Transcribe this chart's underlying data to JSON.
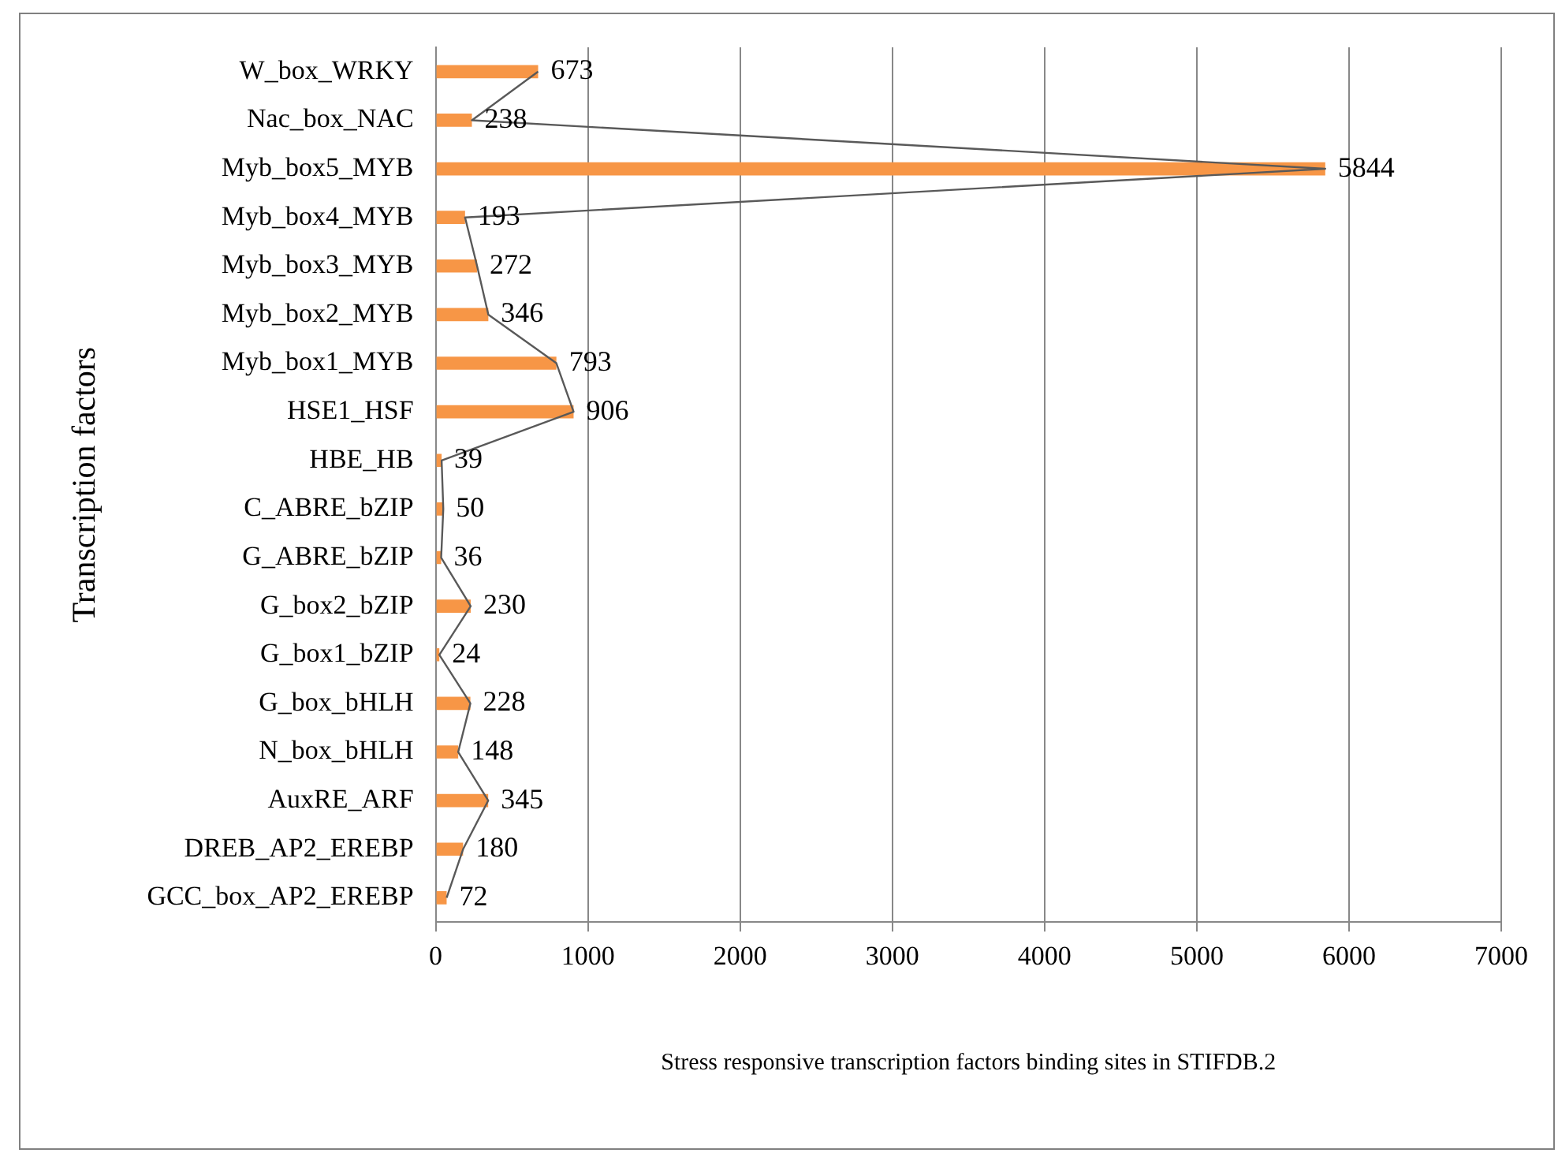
{
  "chart_data": {
    "type": "bar",
    "orientation": "horizontal",
    "xlabel": "Stress responsive transcription factors binding sites in STIFDB.2",
    "ylabel": "Transcription factors",
    "categories": [
      "W_box_WRKY",
      "Nac_box_NAC",
      "Myb_box5_MYB",
      "Myb_box4_MYB",
      "Myb_box3_MYB",
      "Myb_box2_MYB",
      "Myb_box1_MYB",
      "HSE1_HSF",
      "HBE_HB",
      "C_ABRE_bZIP",
      "G_ABRE_bZIP",
      "G_box2_bZIP",
      "G_box1_bZIP",
      "G_box_bHLH",
      "N_box_bHLH",
      "AuxRE_ARF",
      "DREB_AP2_EREBP",
      "GCC_box_AP2_EREBP"
    ],
    "series": [
      {
        "color": "#f79646",
        "values": [
          673,
          238,
          5844,
          193,
          272,
          346,
          793,
          906,
          39,
          50,
          36,
          230,
          24,
          228,
          148,
          345,
          180,
          72
        ],
        "value_labels": [
          "673",
          "238",
          "5844",
          "193",
          "272",
          "346",
          "793",
          "906",
          "39",
          "50",
          "36",
          "230",
          "24",
          "228",
          "148",
          "345",
          "180",
          "72"
        ]
      },
      {
        "type": "line",
        "color": "#595959",
        "values": [
          673,
          238,
          5844,
          193,
          272,
          346,
          793,
          906,
          39,
          50,
          36,
          230,
          24,
          228,
          148,
          345,
          180,
          72
        ]
      }
    ],
    "xlim": [
      0,
      7000
    ],
    "xticks": [
      0,
      1000,
      2000,
      3000,
      4000,
      5000,
      6000,
      7000
    ],
    "grid": "x",
    "legend": false,
    "marker": "none"
  }
}
